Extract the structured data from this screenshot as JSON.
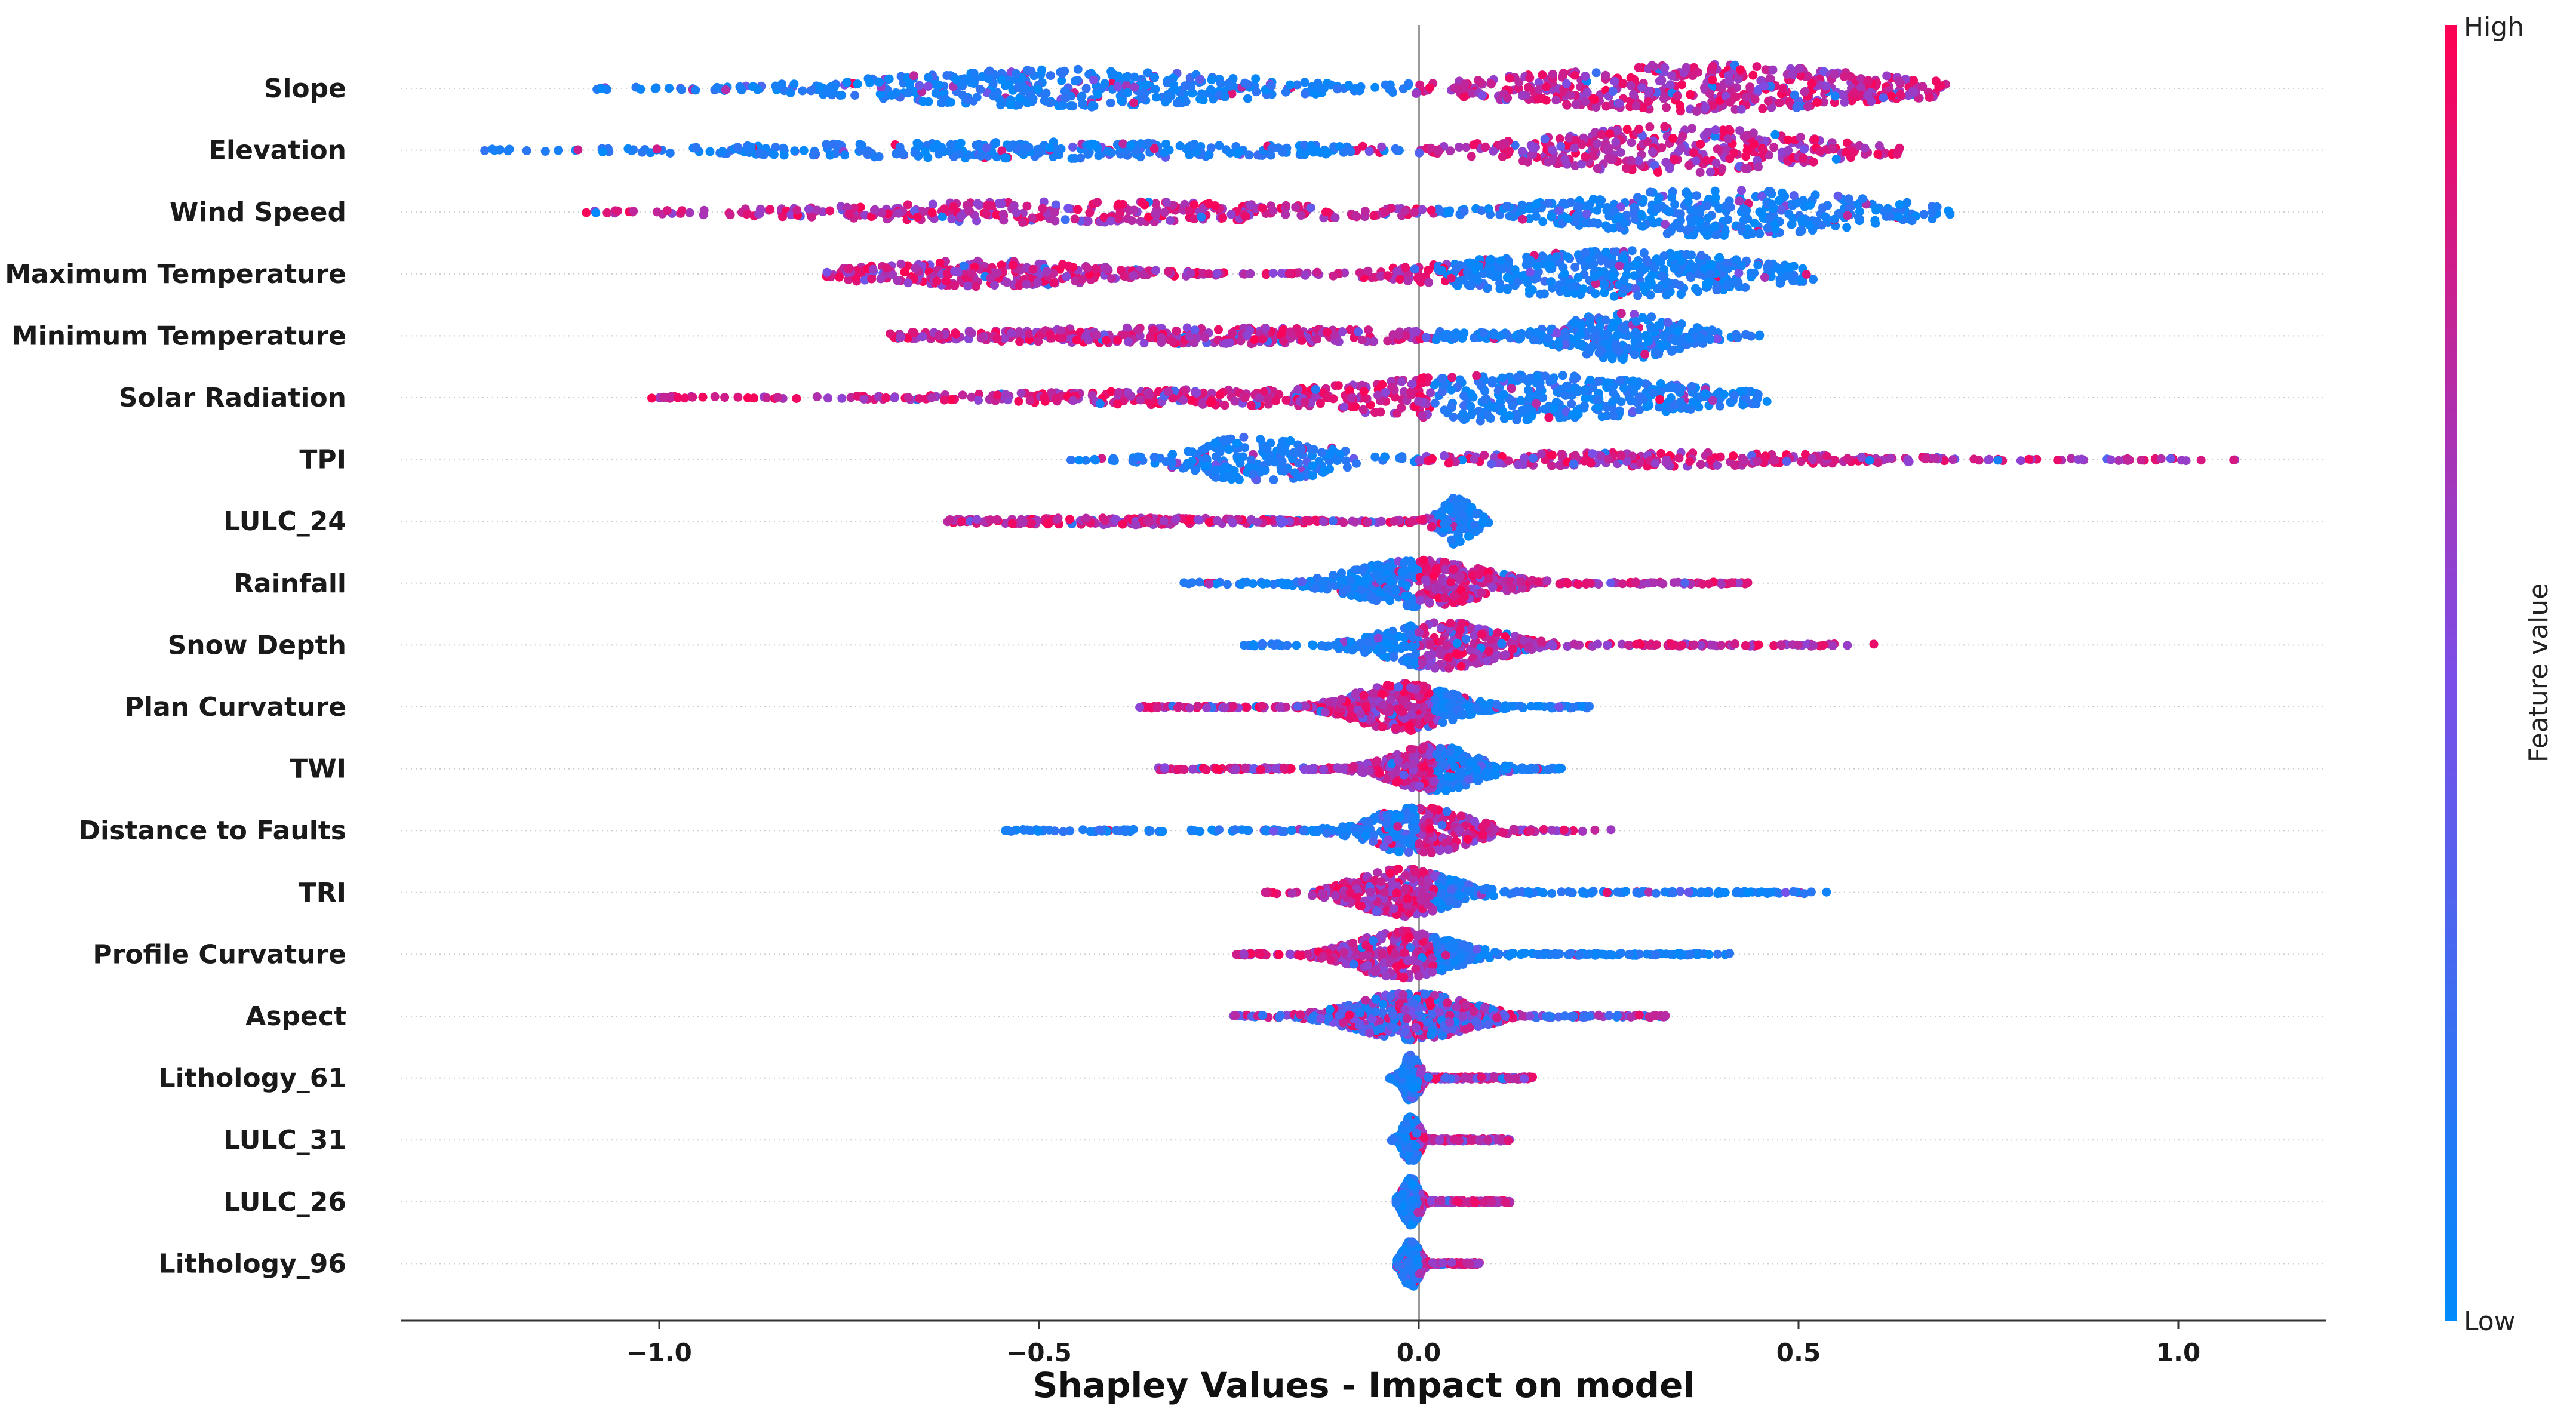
{
  "chart_data": {
    "type": "scatter",
    "subtype": "shap-beeswarm",
    "title": "",
    "xlabel": "Shapley Values - Impact on model",
    "ylabel": "",
    "xlim": [
      -1.35,
      1.2
    ],
    "xticks": [
      {
        "value": -1.0,
        "label": "−1.0"
      },
      {
        "value": -0.5,
        "label": "−0.5"
      },
      {
        "value": 0.0,
        "label": "0.0"
      },
      {
        "value": 0.5,
        "label": "0.5"
      },
      {
        "value": 1.0,
        "label": "1.0"
      }
    ],
    "colorbar": {
      "label": "Feature value",
      "high_label": "High",
      "low_label": "Low",
      "high_color": "#ff0052",
      "low_color": "#008bfb"
    },
    "features": [
      {
        "name": "Slope",
        "min": -1.11,
        "max": 0.7,
        "low_side": "negative",
        "lobes": [
          {
            "center": -0.47,
            "width": 0.22,
            "height": 0.8
          },
          {
            "center": 0.37,
            "width": 0.22,
            "height": 1.0
          }
        ]
      },
      {
        "name": "Elevation",
        "min": -1.23,
        "max": 0.65,
        "low_side": "negative",
        "lobes": [
          {
            "center": -0.5,
            "width": 0.35,
            "height": 0.35
          },
          {
            "center": 0.33,
            "width": 0.16,
            "height": 1.0
          }
        ]
      },
      {
        "name": "Wind Speed",
        "min": -1.11,
        "max": 0.7,
        "low_side": "positive",
        "lobes": [
          {
            "center": -0.45,
            "width": 0.3,
            "height": 0.45
          },
          {
            "center": 0.4,
            "width": 0.18,
            "height": 1.0
          }
        ]
      },
      {
        "name": "Maximum Temperature",
        "min": -0.78,
        "max": 0.52,
        "low_side": "positive",
        "lobes": [
          {
            "center": -0.58,
            "width": 0.15,
            "height": 0.55
          },
          {
            "center": 0.25,
            "width": 0.17,
            "height": 1.0
          }
        ]
      },
      {
        "name": "Minimum Temperature",
        "min": -0.7,
        "max": 0.46,
        "low_side": "positive",
        "lobes": [
          {
            "center": -0.3,
            "width": 0.28,
            "height": 0.35
          },
          {
            "center": 0.27,
            "width": 0.07,
            "height": 1.0
          }
        ]
      },
      {
        "name": "Solar Radiation",
        "min": -1.01,
        "max": 0.46,
        "low_side": "positive",
        "lobes": [
          {
            "center": -0.2,
            "width": 0.3,
            "height": 0.35
          },
          {
            "center": 0.12,
            "width": 0.2,
            "height": 1.0
          }
        ]
      },
      {
        "name": "TPI",
        "min": -0.47,
        "max": 1.09,
        "low_side": "negative",
        "lobes": [
          {
            "center": -0.21,
            "width": 0.08,
            "height": 1.0
          },
          {
            "center": 0.3,
            "width": 0.25,
            "height": 0.3
          }
        ]
      },
      {
        "name": "LULC_24",
        "min": -0.63,
        "max": 0.1,
        "low_side": "positive",
        "lobes": [
          {
            "center": -0.4,
            "width": 0.2,
            "height": 0.15
          },
          {
            "center": 0.05,
            "width": 0.02,
            "height": 1.0
          }
        ]
      },
      {
        "name": "Rainfall",
        "min": -0.32,
        "max": 0.44,
        "low_side": "negative",
        "lobes": [
          {
            "center": 0.0,
            "width": 0.08,
            "height": 1.0
          }
        ]
      },
      {
        "name": "Snow Depth",
        "min": -0.23,
        "max": 0.6,
        "low_side": "negative",
        "lobes": [
          {
            "center": 0.03,
            "width": 0.07,
            "height": 1.0
          }
        ]
      },
      {
        "name": "Plan Curvature",
        "min": -0.37,
        "max": 0.23,
        "low_side": "positive",
        "lobes": [
          {
            "center": -0.02,
            "width": 0.06,
            "height": 1.0
          }
        ]
      },
      {
        "name": "TWI",
        "min": -0.35,
        "max": 0.19,
        "low_side": "positive",
        "lobes": [
          {
            "center": 0.02,
            "width": 0.05,
            "height": 1.0
          }
        ]
      },
      {
        "name": "Distance to Faults",
        "min": -0.55,
        "max": 0.27,
        "low_side": "negative",
        "lobes": [
          {
            "center": 0.0,
            "width": 0.06,
            "height": 1.0
          }
        ]
      },
      {
        "name": "TRI",
        "min": -0.21,
        "max": 0.54,
        "low_side": "positive",
        "lobes": [
          {
            "center": -0.02,
            "width": 0.06,
            "height": 1.0
          }
        ]
      },
      {
        "name": "Profile Curvature",
        "min": -0.24,
        "max": 0.41,
        "low_side": "positive",
        "lobes": [
          {
            "center": -0.02,
            "width": 0.06,
            "height": 1.0
          }
        ]
      },
      {
        "name": "Aspect",
        "min": -0.25,
        "max": 0.33,
        "low_side": "mixed",
        "lobes": [
          {
            "center": -0.01,
            "width": 0.07,
            "height": 1.0
          }
        ]
      },
      {
        "name": "Lithology_61",
        "min": -0.04,
        "max": 0.15,
        "low_side": "negative",
        "lobes": [
          {
            "center": -0.01,
            "width": 0.01,
            "height": 1.0
          }
        ]
      },
      {
        "name": "LULC_31",
        "min": -0.04,
        "max": 0.12,
        "low_side": "negative",
        "lobes": [
          {
            "center": -0.01,
            "width": 0.01,
            "height": 1.0
          }
        ]
      },
      {
        "name": "LULC_26",
        "min": -0.03,
        "max": 0.12,
        "low_side": "negative",
        "lobes": [
          {
            "center": -0.01,
            "width": 0.01,
            "height": 1.0
          }
        ]
      },
      {
        "name": "Lithology_96",
        "min": -0.03,
        "max": 0.08,
        "low_side": "negative",
        "lobes": [
          {
            "center": -0.01,
            "width": 0.01,
            "height": 1.0
          }
        ]
      }
    ]
  }
}
